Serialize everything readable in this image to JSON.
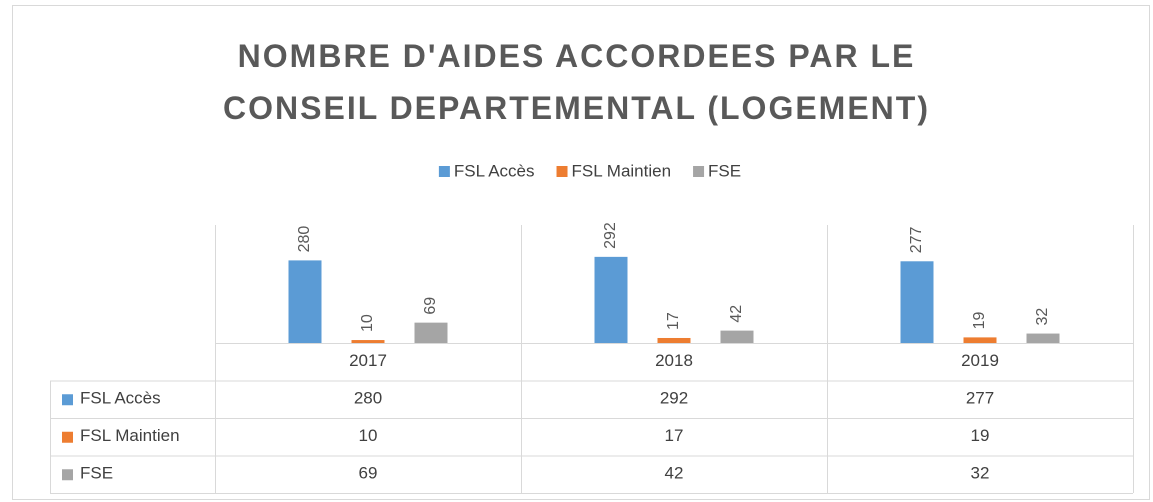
{
  "chart_data": {
    "type": "bar",
    "title": "NOMBRE D'AIDES ACCORDEES PAR LE CONSEIL DEPARTEMENTAL (LOGEMENT)",
    "categories": [
      "2017",
      "2018",
      "2019"
    ],
    "series": [
      {
        "name": "FSL Accès",
        "color": "#5b9bd5",
        "values": [
          280,
          292,
          277
        ]
      },
      {
        "name": "FSL Maintien",
        "color": "#ed7d31",
        "values": [
          10,
          17,
          19
        ]
      },
      {
        "name": "FSE",
        "color": "#a5a5a5",
        "values": [
          69,
          42,
          32
        ]
      }
    ],
    "ylim": [
      0,
      400
    ],
    "legend": "top",
    "data_table": true
  }
}
